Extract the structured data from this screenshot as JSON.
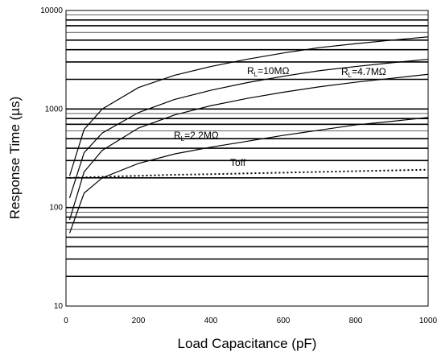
{
  "chart_data": {
    "type": "line",
    "title": "",
    "xlabel": "Load Capacitance (pF)",
    "ylabel": "Response Time (µs)",
    "xlim": [
      0,
      1000
    ],
    "ylim": [
      10,
      10000
    ],
    "yscale": "log",
    "grid": true,
    "x_ticks": [
      "0",
      "200",
      "400",
      "600",
      "800",
      "1000"
    ],
    "y_ticks": [
      "10",
      "100",
      "1000",
      "10000"
    ],
    "series": [
      {
        "name": "RL=10MΩ",
        "label_main": "R",
        "label_sub": "L",
        "label_rest": "=10MΩ",
        "style": "solid",
        "x": [
          10,
          50,
          100,
          200,
          300,
          400,
          500,
          600,
          700,
          800,
          900,
          1000
        ],
        "y": [
          210,
          620,
          1000,
          1650,
          2200,
          2700,
          3200,
          3700,
          4200,
          4600,
          5000,
          5400
        ]
      },
      {
        "name": "RL=4.7MΩ",
        "label_main": "R",
        "label_sub": "L",
        "label_rest": "=4.7MΩ",
        "style": "solid",
        "x": [
          10,
          50,
          100,
          200,
          300,
          400,
          500,
          600,
          700,
          800,
          900,
          1000
        ],
        "y": [
          125,
          360,
          570,
          920,
          1250,
          1550,
          1850,
          2150,
          2450,
          2700,
          2950,
          3200
        ]
      },
      {
        "name": "RL=2.2MΩ",
        "label_main": "R",
        "label_sub": "L",
        "label_rest": "=2.2MΩ",
        "style": "solid",
        "x": [
          10,
          50,
          100,
          200,
          300,
          400,
          500,
          600,
          700,
          800,
          900,
          1000
        ],
        "y": [
          75,
          230,
          380,
          640,
          870,
          1080,
          1280,
          1480,
          1680,
          1870,
          2050,
          2250
        ]
      },
      {
        "name": "unlabeled",
        "label_main": "",
        "label_sub": "",
        "label_rest": "",
        "style": "solid",
        "x": [
          10,
          50,
          100,
          200,
          300,
          400,
          500,
          600,
          700,
          800,
          900,
          1000
        ],
        "y": [
          55,
          140,
          200,
          280,
          350,
          410,
          470,
          540,
          610,
          690,
          750,
          820
        ]
      },
      {
        "name": "Toff",
        "label_main": "Toff",
        "label_sub": "",
        "label_rest": "",
        "style": "dotted",
        "x": [
          10,
          100,
          200,
          300,
          400,
          500,
          600,
          700,
          800,
          900,
          1000
        ],
        "y": [
          200,
          205,
          210,
          215,
          218,
          222,
          226,
          230,
          234,
          238,
          242
        ]
      }
    ]
  }
}
